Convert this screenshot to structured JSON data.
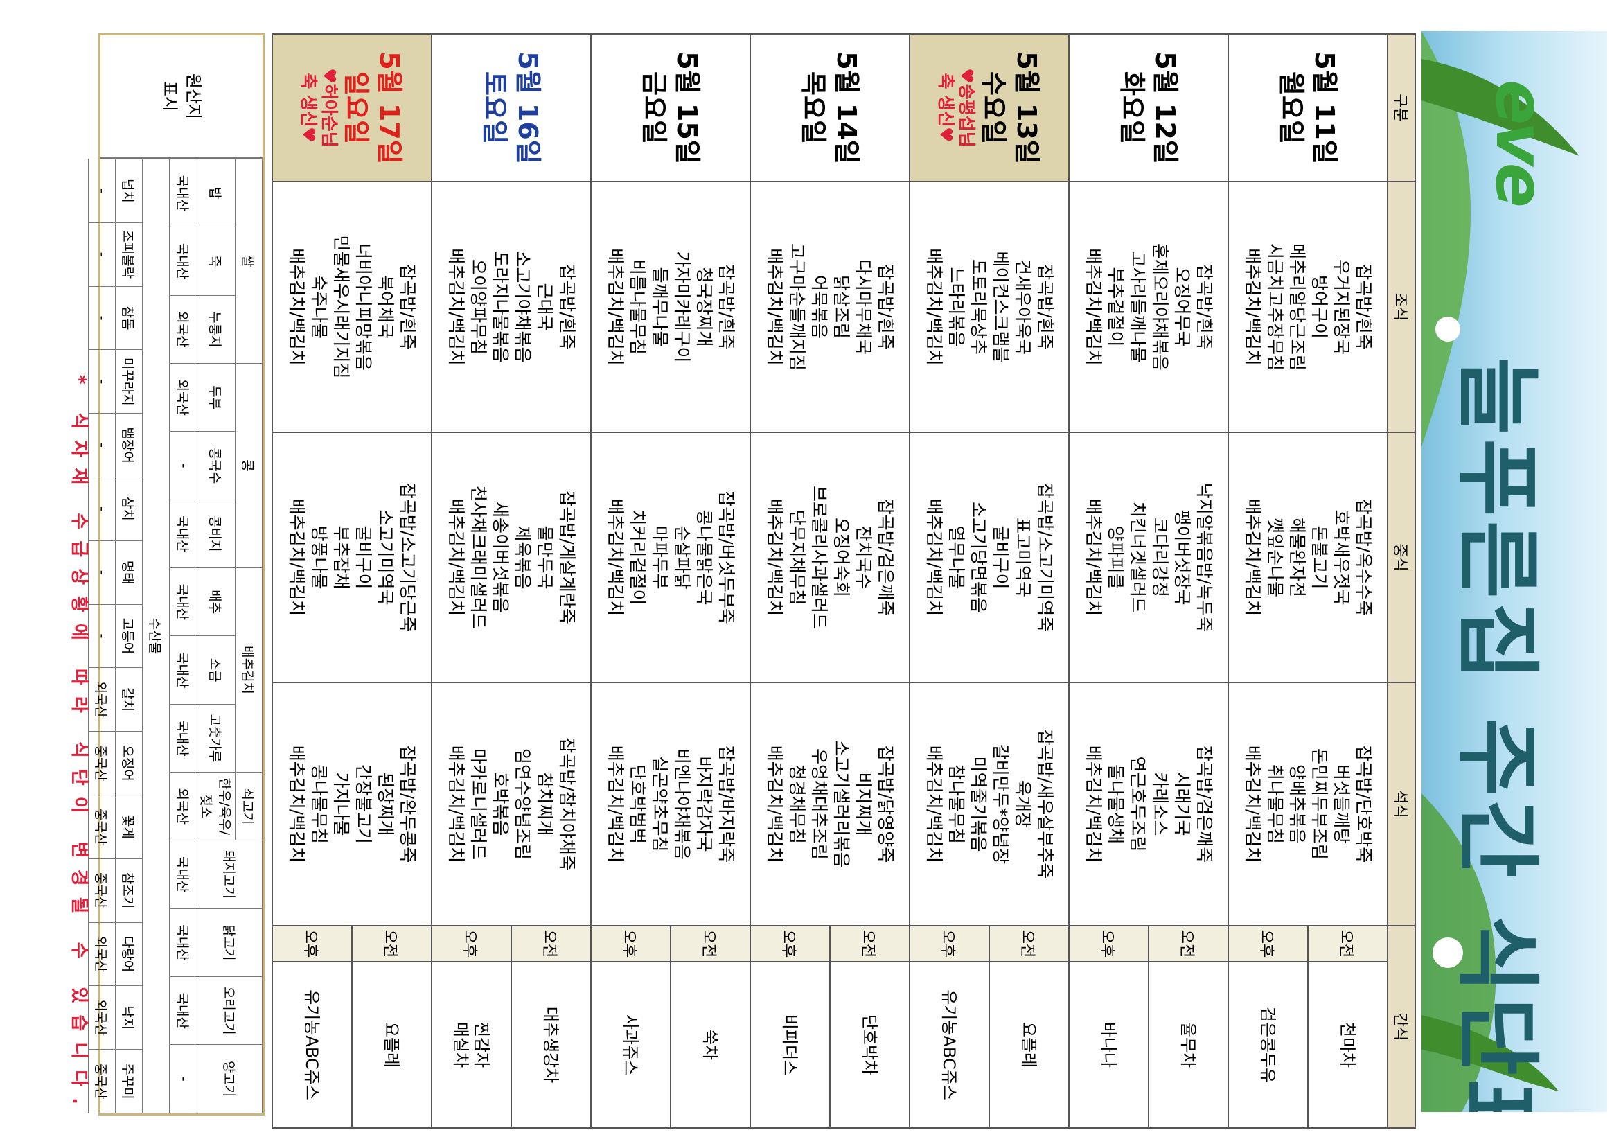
{
  "header": {
    "logo": "eve",
    "title": "늘푸른집 주간 식단표"
  },
  "menu": {
    "columns": [
      "구분",
      "조식",
      "중식",
      "석식",
      "간식"
    ],
    "snack_labels": [
      "오전",
      "오후"
    ],
    "days": [
      {
        "date": "5월 11일",
        "weekday": "월요일",
        "breakfast": [
          "잡곡밥/흰죽",
          "우거지된장국",
          "방어구이",
          "메추리알당근조림",
          "시금치고추장무침",
          "배추김치/백김치"
        ],
        "lunch": [
          "잡곡밥/옥수수죽",
          "호박새우젓국",
          "돈불고기",
          "해물완자전",
          "깻잎순나물",
          "배추김치/백김치"
        ],
        "dinner": [
          "잡곡밥/단호박죽",
          "버섯들깨탕",
          "돈민찌두부조림",
          "양배추볶음",
          "취나물무침",
          "배추김치/백김치"
        ],
        "snack_am": [
          "천마차"
        ],
        "snack_pm": [
          "검은콩두유"
        ]
      },
      {
        "date": "5월 12일",
        "weekday": "화요일",
        "breakfast": [
          "잡곡밥/흰죽",
          "오징어무국",
          "훈제오리야채볶음",
          "고사리들깨나물",
          "부추겉절이",
          "배추김치/백김치"
        ],
        "lunch": [
          "낙지알볶음밥/녹두죽",
          "팽이버섯장국",
          "코다리강정",
          "치킨너겟샐러드",
          "양파피클",
          "배추김치/백김치"
        ],
        "dinner": [
          "잡곡밥/검은깨죽",
          "시래기국",
          "카레소스",
          "연근호두조림",
          "돌나물생채",
          "배추김치/백김치"
        ],
        "snack_am": [
          "율무차"
        ],
        "snack_pm": [
          "바나나"
        ]
      },
      {
        "date": "5월 13일",
        "weekday": "수요일",
        "note": [
          "♥송평섭님",
          "축 생신♥"
        ],
        "breakfast": [
          "잡곡밥/흰죽",
          "건새우아욱국",
          "베이컨스크램블",
          "도토리묵상추",
          "느타리볶음",
          "배추김치/백김치"
        ],
        "lunch": [
          "잡곡밥/소고기미역죽",
          "표고미역국",
          "굴비구이",
          "소고기당면볶음",
          "열무나물",
          "배추김치/백김치"
        ],
        "dinner": [
          "잡곡밥/새우살부추죽",
          "육개장",
          "갈비만두*양념장",
          "미역줄기볶음",
          "참나물무침",
          "배추김치/백김치"
        ],
        "snack_am": [
          "요플레"
        ],
        "snack_pm": [
          "유기농ABC쥬스"
        ]
      },
      {
        "date": "5월 14일",
        "weekday": "목요일",
        "breakfast": [
          "잡곡밥/흰죽",
          "다시마무채국",
          "닭살조림",
          "어묵볶음",
          "고구마순들깨지짐",
          "배추김치/백김치"
        ],
        "lunch": [
          "잡곡밥/검은깨죽",
          "잔치국수",
          "오징어숙회",
          "브로콜리사과샐러드",
          "단무지채무침",
          "배추김치/백김치"
        ],
        "dinner": [
          "잡곡밥/닭영양죽",
          "비지찌개",
          "소고기샐러리볶음",
          "우엉채대추조림",
          "청경채무침",
          "배추김치/백김치"
        ],
        "snack_am": [
          "단호박차"
        ],
        "snack_pm": [
          "비피더스"
        ]
      },
      {
        "date": "5월 15일",
        "weekday": "금요일",
        "breakfast": [
          "잡곡밥/흰죽",
          "청국장찌개",
          "가자미카레구이",
          "들깨무나물",
          "비름나물무침",
          "배추김치/백김치"
        ],
        "lunch": [
          "잡곡밥/버섯두부죽",
          "콩나물맑은국",
          "순살파닭",
          "마파두부",
          "치커리겉절이",
          "배추김치/백김치"
        ],
        "dinner": [
          "잡곡밥/바지락죽",
          "바지락감자국",
          "비엔나야채볶음",
          "실곤약초무침",
          "단호박범벅",
          "배추김치/백김치"
        ],
        "snack_am": [
          "쑥차"
        ],
        "snack_pm": [
          "사과쥬스"
        ]
      },
      {
        "date": "5월 16일",
        "weekday": "토요일",
        "color": "#1f3f9e",
        "breakfast": [
          "잡곡밥/흰죽",
          "근대국",
          "소고기야채볶음",
          "도라지나물볶음",
          "오이양파무침",
          "배추김치/백김치"
        ],
        "lunch": [
          "잡곡밥/게살계란죽",
          "물만두국",
          "제육볶음",
          "새송이버섯볶음",
          "천사채크래미샐러드",
          "배추김치/백김치"
        ],
        "dinner": [
          "잡곡밥/참치야채죽",
          "참치찌개",
          "임연수양념조림",
          "호박볶음",
          "마카로니샐러드",
          "배추김치/백김치"
        ],
        "snack_am": [
          "대추생강차"
        ],
        "snack_pm": [
          "찐감자",
          "매실차"
        ]
      },
      {
        "date": "5월 17일",
        "weekday": "일요일",
        "color": "#e0201a",
        "note": [
          "♥허아순님",
          "축 생신♥"
        ],
        "breakfast": [
          "잡곡밥/흰죽",
          "북어채국",
          "너비아니피망볶음",
          "민물새우시래기지짐",
          "숙주나물",
          "배추김치/백김치"
        ],
        "lunch": [
          "잡곡밥/소고기당근죽",
          "소고기미역국",
          "굴비구이",
          "부추잡채",
          "방풍나물",
          "배추김치/백김치"
        ],
        "dinner": [
          "잡곡밥/완두콩죽",
          "된장찌개",
          "간장불고기",
          "가지나물",
          "콩나물무침",
          "배추김치/백김치"
        ],
        "snack_am": [
          "요플레"
        ],
        "snack_pm": [
          "유기농ABC쥬스"
        ]
      }
    ]
  },
  "origin": {
    "label": [
      "원산지",
      "표시"
    ],
    "groups": [
      {
        "name": "쌀",
        "items": [
          {
            "name": "밥",
            "origin": "국내산"
          },
          {
            "name": "죽",
            "origin": "국내산"
          },
          {
            "name": "누룽지",
            "origin": "외국산"
          }
        ]
      },
      {
        "name": "콩",
        "items": [
          {
            "name": "두부",
            "origin": "외국산"
          },
          {
            "name": "콩국수",
            "origin": "-"
          },
          {
            "name": "콩비지",
            "origin": "국내산"
          }
        ]
      },
      {
        "name": "배추김치",
        "items": [
          {
            "name": "배추",
            "origin": "국내산"
          },
          {
            "name": "소금",
            "origin": "국내산"
          },
          {
            "name": "고춧가루",
            "origin": "국내산"
          }
        ]
      },
      {
        "name": "쇠고기",
        "items": [
          {
            "name": "한우/육우/젖소",
            "origin": "외국산"
          }
        ]
      },
      {
        "name": "돼지고기",
        "origin": "국내산"
      },
      {
        "name": "닭고기",
        "origin": "국내산"
      },
      {
        "name": "오리고기",
        "origin": "국내산"
      },
      {
        "name": "양고기",
        "origin": "-"
      }
    ],
    "seafood": {
      "name": "수산물",
      "items": [
        {
          "name": "넙치",
          "origin": "-"
        },
        {
          "name": "조피볼락",
          "origin": "-"
        },
        {
          "name": "참돔",
          "origin": "-"
        },
        {
          "name": "미꾸라지",
          "origin": "-"
        },
        {
          "name": "뱀장어",
          "origin": "-"
        },
        {
          "name": "삼치",
          "origin": "-"
        },
        {
          "name": "명태",
          "origin": "-"
        },
        {
          "name": "고등어",
          "origin": "-"
        },
        {
          "name": "갈치",
          "origin": "외국산"
        },
        {
          "name": "오징어",
          "origin": "중국산"
        },
        {
          "name": "꽃게",
          "origin": "중국산"
        },
        {
          "name": "참조기",
          "origin": "중국산"
        },
        {
          "name": "다랑어",
          "origin": "외국산"
        },
        {
          "name": "낙지",
          "origin": "외국산"
        },
        {
          "name": "주꾸미",
          "origin": "중국산"
        }
      ]
    }
  },
  "footer": {
    "note": "* 식자재 수급상황에 따라 식단이 변경될 수 있습니다."
  }
}
